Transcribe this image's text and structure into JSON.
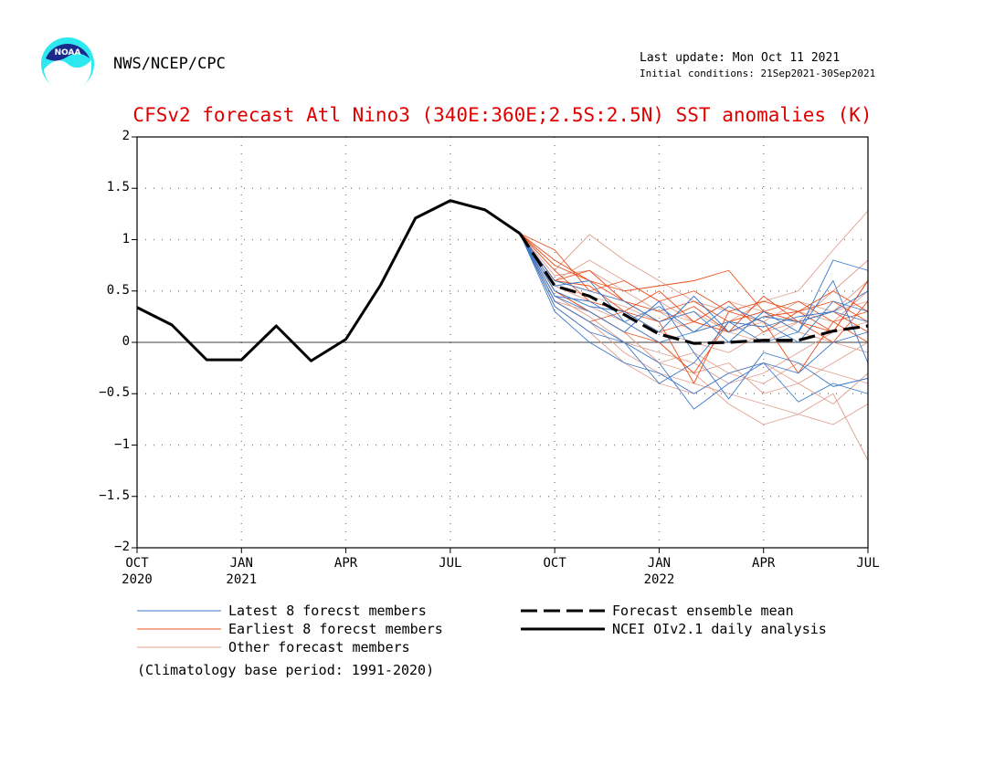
{
  "header": {
    "agency": "NWS/NCEP/CPC",
    "last_update": "Last update: Mon Oct 11 2021",
    "initial_conditions": "Initial conditions: 21Sep2021-30Sep2021",
    "logo_text": "NOAA"
  },
  "chart_data": {
    "type": "line",
    "title": "CFSv2 forecast Atl Nino3 (340E:360E;2.5S:2.5N) SST anomalies (K)",
    "ylim": [
      -2,
      2
    ],
    "yticks": [
      "2",
      "1.5",
      "1",
      "0.5",
      "0",
      "−0.5",
      "−1",
      "−1.5",
      "−2"
    ],
    "xticks": [
      {
        "line1": "OCT",
        "line2": "2020"
      },
      {
        "line1": "JAN",
        "line2": "2021"
      },
      {
        "line1": "APR",
        "line2": ""
      },
      {
        "line1": "JUL",
        "line2": ""
      },
      {
        "line1": "OCT",
        "line2": ""
      },
      {
        "line1": "JAN",
        "line2": "2022"
      },
      {
        "line1": "APR",
        "line2": ""
      },
      {
        "line1": "JUL",
        "line2": ""
      }
    ],
    "grid": true,
    "colors": {
      "latest": "#3a78c9",
      "earliest": "#e8501e",
      "other": "#e0a090",
      "analysis": "#000000",
      "title": "#e00000"
    },
    "analysis": {
      "name": "NCEI OIv2.1 daily analysis",
      "months": [
        0,
        1,
        2,
        3,
        4,
        5,
        6,
        7,
        8,
        9,
        10,
        11
      ],
      "values": [
        0.34,
        0.17,
        -0.17,
        -0.17,
        0.16,
        -0.18,
        0.03,
        0.56,
        1.21,
        1.38,
        1.29,
        1.06
      ]
    },
    "ensemble_mean": {
      "name": "Forecast ensemble mean",
      "start_month": 11,
      "values": [
        1.06,
        0.55,
        0.45,
        0.27,
        0.08,
        -0.01,
        0.0,
        0.02,
        0.02,
        0.11,
        0.16
      ]
    },
    "latest_members": [
      [
        1.06,
        0.35,
        0.1,
        0.0,
        -0.2,
        -0.65,
        -0.4,
        -0.2,
        -0.58,
        -0.4,
        -0.5
      ],
      [
        1.06,
        0.45,
        0.3,
        0.1,
        0.4,
        -0.1,
        -0.55,
        -0.1,
        -0.2,
        -0.43,
        -0.35
      ],
      [
        1.06,
        0.6,
        0.5,
        0.4,
        0.2,
        0.3,
        0.0,
        0.3,
        0.1,
        0.8,
        0.7
      ],
      [
        1.06,
        0.4,
        0.2,
        0.0,
        -0.4,
        -0.2,
        0.2,
        0.0,
        0.1,
        0.6,
        -0.2
      ],
      [
        1.06,
        0.5,
        0.35,
        0.3,
        0.1,
        0.45,
        0.1,
        0.25,
        0.2,
        0.3,
        0.5
      ],
      [
        1.06,
        0.3,
        0.0,
        -0.2,
        -0.3,
        -0.5,
        -0.3,
        -0.2,
        -0.3,
        0.0,
        0.1
      ],
      [
        1.06,
        0.55,
        0.6,
        0.2,
        0.0,
        0.1,
        0.35,
        0.2,
        0.0,
        0.4,
        0.3
      ],
      [
        1.06,
        0.45,
        0.4,
        0.2,
        0.35,
        0.1,
        0.2,
        0.15,
        0.25,
        0.3,
        0.2
      ]
    ],
    "earliest_members": [
      [
        1.06,
        0.8,
        0.6,
        0.5,
        0.55,
        0.6,
        0.7,
        0.3,
        0.2,
        0.1,
        0.6
      ],
      [
        1.06,
        0.7,
        0.4,
        0.3,
        0.2,
        -0.4,
        0.3,
        0.2,
        -0.3,
        0.2,
        0.0
      ],
      [
        1.06,
        0.6,
        0.7,
        0.4,
        0.3,
        0.4,
        0.2,
        0.3,
        0.4,
        0.2,
        0.3
      ],
      [
        1.06,
        0.9,
        0.5,
        0.6,
        0.4,
        0.5,
        0.3,
        0.4,
        0.3,
        0.4,
        0.2
      ],
      [
        1.06,
        0.5,
        0.3,
        0.1,
        0.0,
        -0.3,
        0.2,
        0.3,
        0.2,
        0.0,
        0.4
      ],
      [
        1.06,
        0.6,
        0.55,
        0.3,
        0.5,
        0.2,
        0.4,
        0.1,
        0.3,
        0.1,
        0.6
      ],
      [
        1.06,
        0.4,
        0.2,
        0.3,
        0.1,
        0.2,
        0.1,
        0.45,
        0.2,
        0.3,
        0.1
      ],
      [
        1.06,
        0.75,
        0.6,
        0.4,
        0.2,
        0.35,
        0.1,
        0.25,
        0.3,
        0.5,
        0.3
      ]
    ],
    "other_members": [
      [
        1.06,
        0.7,
        1.05,
        0.8,
        0.6,
        0.4,
        0.3,
        0.4,
        0.5,
        0.9,
        1.28
      ],
      [
        1.06,
        0.5,
        0.3,
        0.1,
        -0.2,
        -0.3,
        -0.6,
        -0.8,
        -0.7,
        -0.5,
        -1.15
      ],
      [
        1.06,
        0.4,
        0.2,
        -0.1,
        -0.3,
        -0.4,
        -0.5,
        -0.6,
        -0.7,
        -0.8,
        -0.6
      ],
      [
        1.06,
        0.6,
        0.8,
        0.6,
        0.4,
        0.2,
        0.1,
        0.0,
        0.2,
        0.5,
        0.8
      ],
      [
        1.06,
        0.35,
        0.1,
        -0.2,
        -0.4,
        -0.5,
        -0.3,
        -0.4,
        -0.2,
        -0.3,
        -0.4
      ],
      [
        1.06,
        0.55,
        0.4,
        0.3,
        0.1,
        0.0,
        -0.1,
        0.1,
        0.2,
        0.3,
        0.4
      ],
      [
        1.06,
        0.45,
        0.25,
        0.0,
        -0.1,
        -0.2,
        -0.4,
        -0.3,
        -0.1,
        0.1,
        0.2
      ],
      [
        1.06,
        0.65,
        0.7,
        0.5,
        0.3,
        0.2,
        0.4,
        0.3,
        0.1,
        0.0,
        -0.1
      ],
      [
        1.06,
        0.5,
        0.35,
        0.2,
        0.0,
        -0.3,
        -0.2,
        -0.5,
        -0.4,
        -0.2,
        0.0
      ],
      [
        1.06,
        0.6,
        0.5,
        0.4,
        0.3,
        0.1,
        0.2,
        0.4,
        0.3,
        0.2,
        0.5
      ],
      [
        1.06,
        0.4,
        0.3,
        0.1,
        -0.2,
        -0.1,
        -0.3,
        -0.2,
        -0.4,
        -0.6,
        -0.3
      ],
      [
        1.06,
        0.55,
        0.45,
        0.35,
        0.2,
        0.3,
        0.1,
        0.2,
        0.4,
        0.3,
        0.6
      ]
    ],
    "legend": {
      "latest": "Latest 8 forecst members",
      "earliest": "Earliest 8 forecst members",
      "other": "Other forecast members",
      "mean": "Forecast ensemble mean",
      "analysis": "NCEI OIv2.1 daily analysis"
    },
    "note": "(Climatology base period: 1991-2020)"
  }
}
